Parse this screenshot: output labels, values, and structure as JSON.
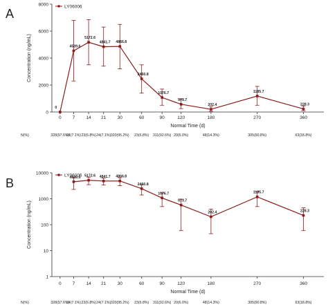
{
  "panels": {
    "a_letter": "A",
    "b_letter": "B"
  },
  "colors": {
    "series": "#8b1a1a",
    "axis": "#333333",
    "text": "#222222"
  },
  "chart_data": [
    {
      "type": "line",
      "panel": "A",
      "legend": "LY06006",
      "xlabel": "Normal Time (d)",
      "ylabel": "Concentration (ng/mL)",
      "x_ticks": [
        "0",
        "7",
        "14",
        "21",
        "30",
        "60",
        "90",
        "120",
        "180",
        "270",
        "360"
      ],
      "y_ticks": [
        "0",
        "2000",
        "4000",
        "6000",
        "8000"
      ],
      "ylim": [
        0,
        8000
      ],
      "y_scale": "linear",
      "series": [
        {
          "name": "LY06006",
          "points": [
            {
              "x": "0",
              "y": 0,
              "label": "0",
              "err_low": 0,
              "err_high": 0
            },
            {
              "x": "7",
              "y": 4539.6,
              "label": "4539.6",
              "err_low": 2300,
              "err_high": 6800
            },
            {
              "x": "14",
              "y": 5172.6,
              "label": "5172.6",
              "err_low": 3500,
              "err_high": 6850
            },
            {
              "x": "21",
              "y": 4841.7,
              "label": "4841.7",
              "err_low": 3400,
              "err_high": 6300
            },
            {
              "x": "30",
              "y": 4866.8,
              "label": "4866.8",
              "err_low": 3200,
              "err_high": 6500
            },
            {
              "x": "60",
              "y": 2460.8,
              "label": "2460.8",
              "err_low": 1400,
              "err_high": 3500
            },
            {
              "x": "90",
              "y": 1076.7,
              "label": "1076.7",
              "err_low": 500,
              "err_high": 1700
            },
            {
              "x": "120",
              "y": 573.7,
              "label": "573.7",
              "err_low": 250,
              "err_high": 950
            },
            {
              "x": "180",
              "y": 202.4,
              "label": "202.4",
              "err_low": 50,
              "err_high": 400
            },
            {
              "x": "270",
              "y": 1185.7,
              "label": "1185.7",
              "err_low": 500,
              "err_high": 1900
            },
            {
              "x": "360",
              "y": 228.3,
              "label": "228.3",
              "err_low": 100,
              "err_high": 450
            }
          ]
        }
      ],
      "n_row_label": "N(%)",
      "n_values": [
        "328(97.6%)",
        "24(7.1%)",
        "23(6.8%)",
        "24(7.1%)",
        "320(95.2%)",
        "23(6.8%)",
        "311(92.6%)",
        "20(6.0%)",
        "48(14.3%)",
        "305(90.8%)",
        "63(18.8%)"
      ]
    },
    {
      "type": "line",
      "panel": "B",
      "legend": "LY06006",
      "xlabel": "Normal Time (d)",
      "ylabel": "Concentration (ng/mL)",
      "x_ticks": [
        "0",
        "7",
        "14",
        "21",
        "30",
        "60",
        "90",
        "120",
        "180",
        "270",
        "360"
      ],
      "y_ticks": [
        "1",
        "10",
        "100",
        "1000",
        "10000"
      ],
      "ylim": [
        1,
        10000
      ],
      "y_scale": "log",
      "series": [
        {
          "name": "LY06006",
          "points": [
            {
              "x": "7",
              "y": 4539.6,
              "label": "4539.6",
              "err_low": 2300,
              "err_high": 6800
            },
            {
              "x": "14",
              "y": 5172.6,
              "label": "5172.6",
              "err_low": 3500,
              "err_high": 6850
            },
            {
              "x": "21",
              "y": 4841.7,
              "label": "4841.7",
              "err_low": 3400,
              "err_high": 6300
            },
            {
              "x": "30",
              "y": 4866.8,
              "label": "4866.8",
              "err_low": 3200,
              "err_high": 6500
            },
            {
              "x": "60",
              "y": 2460.8,
              "label": "2460.8",
              "err_low": 1400,
              "err_high": 3500
            },
            {
              "x": "90",
              "y": 1076.7,
              "label": "1076.7",
              "err_low": 500,
              "err_high": 1700
            },
            {
              "x": "120",
              "y": 573.7,
              "label": "573.7",
              "err_low": 60,
              "err_high": 950
            },
            {
              "x": "180",
              "y": 202.4,
              "label": "202.4",
              "err_low": 45,
              "err_high": 400
            },
            {
              "x": "270",
              "y": 1185.7,
              "label": "1185.7",
              "err_low": 500,
              "err_high": 1900
            },
            {
              "x": "360",
              "y": 228.3,
              "label": "228.3",
              "err_low": 60,
              "err_high": 450
            }
          ]
        }
      ],
      "n_row_label": "N(%)",
      "n_values": [
        "328(97.6%)",
        "24(7.1%)",
        "23(6.8%)",
        "24(7.1%)",
        "320(95.2%)",
        "23(6.8%)",
        "311(92.6%)",
        "20(6.0%)",
        "48(14.3%)",
        "305(90.8%)",
        "63(18.8%)"
      ]
    }
  ]
}
